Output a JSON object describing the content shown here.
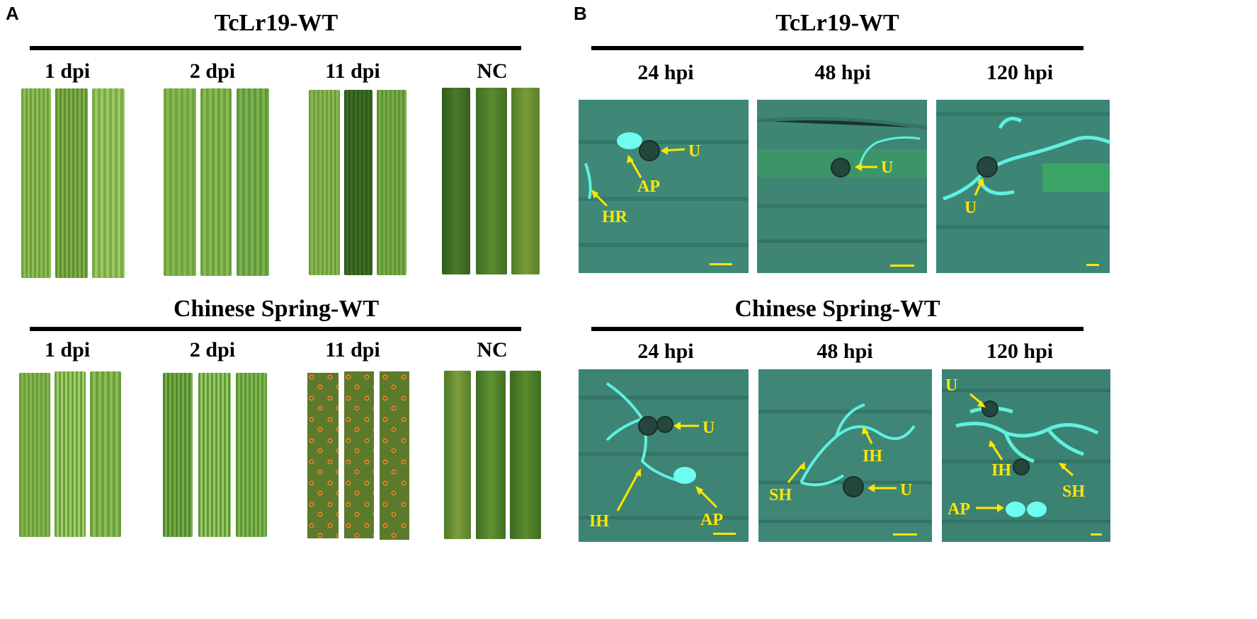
{
  "panel_a": {
    "letter": "A",
    "top": {
      "title": "TcLr19-WT",
      "labels": [
        "1 dpi",
        "2 dpi",
        "11 dpi",
        "NC"
      ]
    },
    "bottom": {
      "title": "Chinese Spring-WT",
      "labels": [
        "1 dpi",
        "2 dpi",
        "11 dpi",
        "NC"
      ]
    }
  },
  "panel_b": {
    "letter": "B",
    "top": {
      "title": "TcLr19-WT",
      "labels": [
        "24 hpi",
        "48 hpi",
        "120 hpi"
      ],
      "annotations": {
        "img1": [
          "U",
          "AP",
          "HR"
        ],
        "img2": [
          "U"
        ],
        "img3": [
          "U"
        ]
      }
    },
    "bottom": {
      "title": "Chinese Spring-WT",
      "labels": [
        "24 hpi",
        "48 hpi",
        "120 hpi"
      ],
      "annotations": {
        "img1": [
          "U",
          "IH",
          "AP"
        ],
        "img2": [
          "IH",
          "SH",
          "U"
        ],
        "img3": [
          "U",
          "IH",
          "SH",
          "AP"
        ]
      }
    }
  },
  "colors": {
    "annotation": "#ffe600",
    "leaf_light": "#7fae4a",
    "leaf_dark": "#3e6e1f",
    "micro_bg": "#3d8a7a",
    "hyphae": "#5ff0e0"
  }
}
